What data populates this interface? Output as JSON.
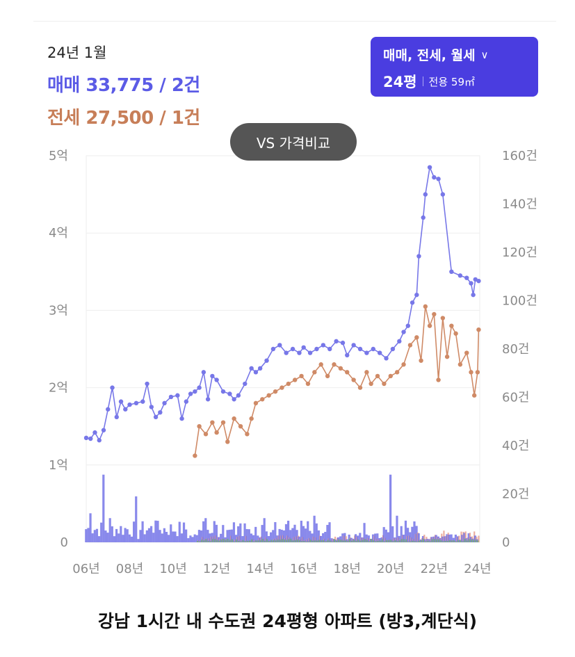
{
  "header": {
    "period": "24년 1월",
    "sale_summary": "매매 33,775 / 2건",
    "rent_summary": "전세 27,500 / 1건"
  },
  "selector": {
    "type_label": "매매, 전세, 월세",
    "pyeong_label": "24평",
    "area_label": "전용 59㎡",
    "chevron_icon": "chevron-down-icon"
  },
  "compare_button": {
    "label": "VS 가격비교"
  },
  "caption": {
    "text": "강남 1시간 내 수도권 24평형 아파트 (방3,계단식)"
  },
  "chart_data": {
    "type": "line",
    "x_tick_labels": [
      "06년",
      "08년",
      "10년",
      "12년",
      "14년",
      "16년",
      "18년",
      "20년",
      "22년",
      "24년"
    ],
    "x_range": [
      2006.0,
      2024.1
    ],
    "y_left_ticks": [
      "0",
      "1억",
      "2억",
      "3억",
      "4억",
      "5억"
    ],
    "y_left_range": [
      0,
      5
    ],
    "y_right_ticks": [
      "0",
      "20건",
      "40건",
      "60건",
      "80건",
      "100건",
      "120건",
      "140건",
      "160건"
    ],
    "y_right_range": [
      0,
      160
    ],
    "grid": true,
    "colors": {
      "sale": "#7777e8",
      "rent": "#cf8a66",
      "volume_sale": "#6b6be6",
      "volume_rent": "#e8a090",
      "volume_other": "#6bb86b"
    },
    "series": [
      {
        "key": "sale",
        "axis": "left",
        "points": [
          [
            2006.0,
            1.35
          ],
          [
            2006.2,
            1.34
          ],
          [
            2006.4,
            1.42
          ],
          [
            2006.6,
            1.32
          ],
          [
            2006.8,
            1.45
          ],
          [
            2007.0,
            1.72
          ],
          [
            2007.2,
            2.0
          ],
          [
            2007.4,
            1.62
          ],
          [
            2007.6,
            1.82
          ],
          [
            2007.8,
            1.72
          ],
          [
            2008.0,
            1.78
          ],
          [
            2008.3,
            1.8
          ],
          [
            2008.6,
            1.82
          ],
          [
            2008.8,
            2.05
          ],
          [
            2009.0,
            1.75
          ],
          [
            2009.2,
            1.62
          ],
          [
            2009.4,
            1.68
          ],
          [
            2009.6,
            1.8
          ],
          [
            2009.9,
            1.88
          ],
          [
            2010.2,
            1.9
          ],
          [
            2010.4,
            1.6
          ],
          [
            2010.6,
            1.82
          ],
          [
            2010.8,
            1.92
          ],
          [
            2011.0,
            1.95
          ],
          [
            2011.2,
            2.0
          ],
          [
            2011.4,
            2.2
          ],
          [
            2011.6,
            1.85
          ],
          [
            2011.8,
            2.15
          ],
          [
            2012.0,
            2.1
          ],
          [
            2012.3,
            1.95
          ],
          [
            2012.6,
            1.92
          ],
          [
            2012.8,
            1.85
          ],
          [
            2013.0,
            1.9
          ],
          [
            2013.3,
            2.05
          ],
          [
            2013.6,
            2.25
          ],
          [
            2013.8,
            2.2
          ],
          [
            2014.0,
            2.25
          ],
          [
            2014.3,
            2.35
          ],
          [
            2014.6,
            2.5
          ],
          [
            2014.9,
            2.55
          ],
          [
            2015.2,
            2.45
          ],
          [
            2015.5,
            2.5
          ],
          [
            2015.8,
            2.45
          ],
          [
            2016.0,
            2.52
          ],
          [
            2016.3,
            2.45
          ],
          [
            2016.6,
            2.5
          ],
          [
            2016.9,
            2.55
          ],
          [
            2017.2,
            2.5
          ],
          [
            2017.5,
            2.6
          ],
          [
            2017.8,
            2.58
          ],
          [
            2018.0,
            2.42
          ],
          [
            2018.3,
            2.55
          ],
          [
            2018.6,
            2.5
          ],
          [
            2018.9,
            2.45
          ],
          [
            2019.2,
            2.5
          ],
          [
            2019.5,
            2.45
          ],
          [
            2019.8,
            2.38
          ],
          [
            2020.1,
            2.5
          ],
          [
            2020.4,
            2.6
          ],
          [
            2020.6,
            2.72
          ],
          [
            2020.8,
            2.8
          ],
          [
            2021.0,
            3.1
          ],
          [
            2021.2,
            3.2
          ],
          [
            2021.3,
            3.7
          ],
          [
            2021.5,
            4.2
          ],
          [
            2021.6,
            4.5
          ],
          [
            2021.8,
            4.85
          ],
          [
            2022.0,
            4.72
          ],
          [
            2022.2,
            4.7
          ],
          [
            2022.4,
            4.5
          ],
          [
            2022.8,
            3.5
          ],
          [
            2023.2,
            3.45
          ],
          [
            2023.5,
            3.42
          ],
          [
            2023.7,
            3.35
          ],
          [
            2023.8,
            3.2
          ],
          [
            2023.9,
            3.4
          ],
          [
            2024.05,
            3.38
          ]
        ]
      },
      {
        "key": "rent",
        "axis": "left",
        "points": [
          [
            2011.0,
            1.12
          ],
          [
            2011.2,
            1.5
          ],
          [
            2011.5,
            1.4
          ],
          [
            2011.8,
            1.55
          ],
          [
            2012.0,
            1.42
          ],
          [
            2012.3,
            1.55
          ],
          [
            2012.5,
            1.3
          ],
          [
            2012.8,
            1.6
          ],
          [
            2013.1,
            1.5
          ],
          [
            2013.4,
            1.4
          ],
          [
            2013.6,
            1.6
          ],
          [
            2013.8,
            1.8
          ],
          [
            2014.1,
            1.85
          ],
          [
            2014.4,
            1.9
          ],
          [
            2014.7,
            1.95
          ],
          [
            2015.0,
            2.0
          ],
          [
            2015.3,
            2.05
          ],
          [
            2015.6,
            2.1
          ],
          [
            2015.9,
            2.15
          ],
          [
            2016.2,
            2.05
          ],
          [
            2016.5,
            2.2
          ],
          [
            2016.8,
            2.3
          ],
          [
            2017.1,
            2.15
          ],
          [
            2017.4,
            2.3
          ],
          [
            2017.7,
            2.25
          ],
          [
            2018.0,
            2.2
          ],
          [
            2018.3,
            2.1
          ],
          [
            2018.6,
            2.0
          ],
          [
            2018.9,
            2.2
          ],
          [
            2019.1,
            2.05
          ],
          [
            2019.4,
            2.15
          ],
          [
            2019.7,
            2.05
          ],
          [
            2020.0,
            2.15
          ],
          [
            2020.3,
            2.2
          ],
          [
            2020.6,
            2.3
          ],
          [
            2020.9,
            2.55
          ],
          [
            2021.2,
            2.65
          ],
          [
            2021.4,
            2.35
          ],
          [
            2021.6,
            3.05
          ],
          [
            2021.8,
            2.8
          ],
          [
            2022.0,
            2.95
          ],
          [
            2022.2,
            2.1
          ],
          [
            2022.4,
            2.9
          ],
          [
            2022.6,
            2.4
          ],
          [
            2022.8,
            2.8
          ],
          [
            2023.0,
            2.7
          ],
          [
            2023.2,
            2.3
          ],
          [
            2023.5,
            2.45
          ],
          [
            2023.7,
            2.2
          ],
          [
            2023.85,
            1.9
          ],
          [
            2024.0,
            2.2
          ],
          [
            2024.05,
            2.75
          ]
        ]
      }
    ],
    "volume_spikes": [
      [
        2006.2,
        12
      ],
      [
        2006.8,
        28
      ],
      [
        2007.1,
        10
      ],
      [
        2008.3,
        19
      ],
      [
        2009.2,
        9
      ],
      [
        2011.5,
        10
      ],
      [
        2014.2,
        10
      ],
      [
        2016.5,
        11
      ],
      [
        2018.8,
        8
      ],
      [
        2020.0,
        28
      ],
      [
        2020.3,
        11
      ]
    ]
  }
}
